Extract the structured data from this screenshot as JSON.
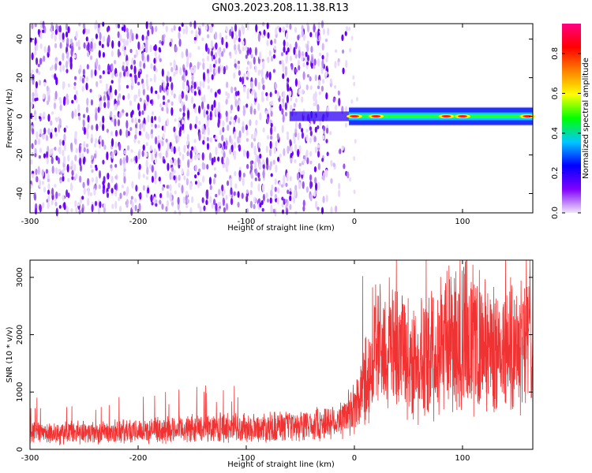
{
  "title": "GN03.2023.208.11.38.R13",
  "chart_data": [
    {
      "type": "heatmap",
      "xlabel": "Height of straight line (km)",
      "ylabel": "Frequency (Hz)",
      "xlim": [
        -300,
        165
      ],
      "ylim": [
        -50,
        48
      ],
      "x_ticks": [
        "-300",
        "-200",
        "-100",
        "0",
        "100"
      ],
      "y_ticks": [
        "-40",
        "-20",
        "0",
        "20",
        "40"
      ],
      "colorbar": {
        "label": "Normalized spectral amplitude",
        "range": [
          0,
          0.95
        ],
        "ticks": [
          "0.0",
          "0.2",
          "0.4",
          "0.6",
          "0.8"
        ],
        "colormap": [
          "#f0e6fa",
          "#8000ff",
          "#0000ff",
          "#00c8ff",
          "#00ff00",
          "#ffff00",
          "#ff8000",
          "#ff0000",
          "#ff0080"
        ]
      },
      "description_features": {
        "noise_region_x": [
          -300,
          -5
        ],
        "signal_band_x": [
          -5,
          165
        ],
        "signal_band_freq": [
          -3,
          3
        ],
        "signal_peak_x": [
          0,
          20,
          85,
          100,
          160
        ]
      }
    },
    {
      "type": "line",
      "xlabel": "Height of straight line (km)",
      "ylabel": "SNR (10 * v/v)",
      "xlim": [
        -300,
        165
      ],
      "ylim": [
        0,
        3300
      ],
      "x_ticks": [
        "-300",
        "-200",
        "-100",
        "0",
        "100"
      ],
      "y_ticks": [
        "0",
        "1000",
        "2000",
        "3000"
      ],
      "color": "#f03232",
      "series": [
        {
          "x": [
            -300,
            -250,
            -200,
            -150,
            -100,
            -50,
            -10,
            0,
            10,
            20,
            40,
            60,
            80,
            100,
            120,
            140,
            160,
            165
          ],
          "y": [
            280,
            300,
            320,
            360,
            380,
            400,
            520,
            700,
            1200,
            1800,
            1700,
            1500,
            1900,
            2000,
            1750,
            1700,
            2100,
            2000
          ]
        }
      ]
    }
  ]
}
